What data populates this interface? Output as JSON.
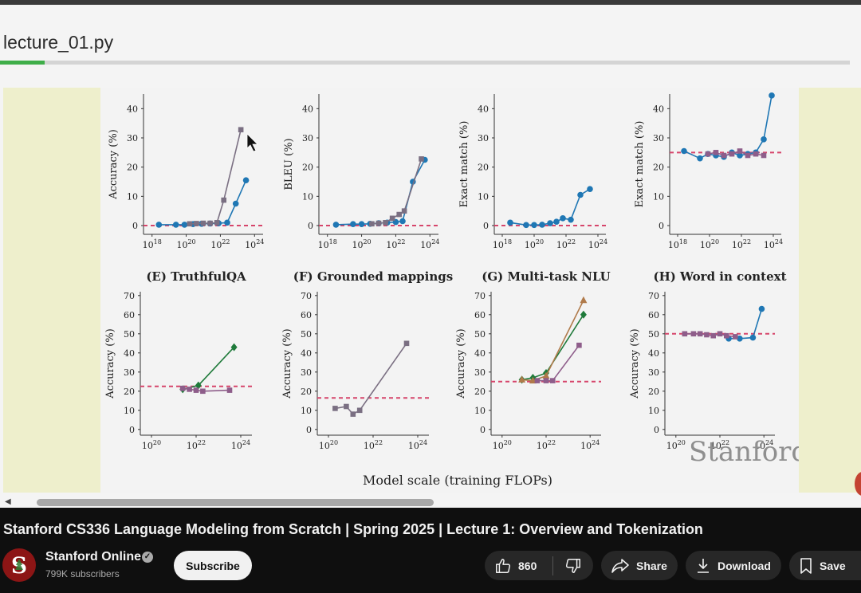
{
  "editor": {
    "tab_title": "lecture_01.py"
  },
  "figure": {
    "top_row": [
      {
        "ylabel": "Accuracy (%)",
        "yticks": [
          "0",
          "10",
          "20",
          "30",
          "40"
        ],
        "xticks": [
          "10",
          "10",
          "10",
          "10"
        ],
        "xexp": [
          "18",
          "20",
          "22",
          "24"
        ]
      },
      {
        "ylabel": "BLEU (%)",
        "yticks": [
          "0",
          "10",
          "20",
          "30",
          "40"
        ],
        "xticks": [
          "10",
          "10",
          "10",
          "10"
        ],
        "xexp": [
          "18",
          "20",
          "22",
          "24"
        ]
      },
      {
        "ylabel": "Exact match (%)",
        "yticks": [
          "0",
          "10",
          "20",
          "30",
          "40"
        ],
        "xticks": [
          "10",
          "10",
          "10",
          "10"
        ],
        "xexp": [
          "18",
          "20",
          "22",
          "24"
        ]
      },
      {
        "ylabel": "Exact match (%)",
        "yticks": [
          "0",
          "10",
          "20",
          "30",
          "40"
        ],
        "xticks": [
          "10",
          "10",
          "10",
          "10"
        ],
        "xexp": [
          "18",
          "20",
          "22",
          "24"
        ]
      }
    ],
    "bottom_row": [
      {
        "title": "(E) TruthfulQA",
        "ylabel": "Accuracy (%)",
        "yticks": [
          "0",
          "10",
          "20",
          "30",
          "40",
          "50",
          "60",
          "70"
        ],
        "xticks": [
          "10",
          "10",
          "10"
        ],
        "xexp": [
          "20",
          "22",
          "24"
        ]
      },
      {
        "title": "(F) Grounded mappings",
        "ylabel": "Accuracy (%)",
        "yticks": [
          "0",
          "10",
          "20",
          "30",
          "40",
          "50",
          "60",
          "70"
        ],
        "xticks": [
          "10",
          "10",
          "10"
        ],
        "xexp": [
          "20",
          "22",
          "24"
        ]
      },
      {
        "title": "(G) Multi-task NLU",
        "ylabel": "Accuracy (%)",
        "yticks": [
          "0",
          "10",
          "20",
          "30",
          "40",
          "50",
          "60",
          "70"
        ],
        "xticks": [
          "10",
          "10",
          "10"
        ],
        "xexp": [
          "20",
          "22",
          "24"
        ]
      },
      {
        "title": "(H) Word in context",
        "ylabel": "Accuracy (%)",
        "yticks": [
          "0",
          "10",
          "20",
          "30",
          "40",
          "50",
          "60",
          "70"
        ],
        "xticks": [
          "10",
          "10",
          "10"
        ],
        "xexp": [
          "20",
          "22",
          "24"
        ]
      }
    ],
    "xlabel": "Model scale (training FLOPs)",
    "watermark": "Stanford"
  },
  "chart_data": [
    {
      "type": "line",
      "panel": "A",
      "ylabel": "Accuracy (%)",
      "xlog_range": [
        17.5,
        24.5
      ],
      "ylim": [
        -3,
        45
      ],
      "baseline": 0,
      "series": [
        {
          "name": "blue",
          "color": "#1f77b4",
          "x": [
            18.4,
            19.4,
            19.9,
            20.4,
            20.9,
            21.4,
            21.9,
            22.4,
            22.9,
            23.5
          ],
          "y": [
            0.3,
            0.3,
            0.3,
            0.5,
            0.6,
            0.7,
            0.8,
            1.0,
            7.5,
            15.5
          ]
        },
        {
          "name": "grey",
          "color": "#7a6f82",
          "x": [
            20.2,
            20.6,
            21.0,
            21.4,
            21.8,
            22.2,
            23.2
          ],
          "y": [
            0.6,
            0.7,
            0.8,
            0.8,
            1.0,
            8.7,
            32.8
          ]
        }
      ]
    },
    {
      "type": "line",
      "panel": "B",
      "ylabel": "BLEU (%)",
      "xlog_range": [
        17.5,
        24.5
      ],
      "ylim": [
        -3,
        45
      ],
      "baseline": 0,
      "series": [
        {
          "name": "blue",
          "color": "#1f77b4",
          "x": [
            18.5,
            19.5,
            20.0,
            20.5,
            21.0,
            21.5,
            22.0,
            22.4,
            23.0,
            23.7
          ],
          "y": [
            0.3,
            0.5,
            0.5,
            0.6,
            0.8,
            1.0,
            1.2,
            1.5,
            15.0,
            22.5
          ]
        },
        {
          "name": "grey",
          "color": "#7a6f82",
          "x": [
            20.6,
            21.0,
            21.4,
            21.8,
            22.2,
            22.5,
            23.5
          ],
          "y": [
            0.6,
            0.8,
            1.0,
            2.5,
            3.8,
            5.0,
            22.8
          ]
        }
      ]
    },
    {
      "type": "line",
      "panel": "C",
      "ylabel": "Exact match (%)",
      "xlog_range": [
        17.5,
        24.5
      ],
      "ylim": [
        -3,
        45
      ],
      "baseline": 0,
      "series": [
        {
          "name": "blue",
          "color": "#1f77b4",
          "x": [
            18.5,
            19.5,
            20.0,
            20.5,
            21.0,
            21.4,
            21.8,
            22.3,
            22.9,
            23.5
          ],
          "y": [
            1.0,
            0.2,
            0.2,
            0.3,
            0.8,
            1.3,
            2.5,
            2.0,
            10.5,
            12.5
          ]
        }
      ]
    },
    {
      "type": "line",
      "panel": "D",
      "ylabel": "Exact match (%)",
      "xlog_range": [
        17.5,
        24.5
      ],
      "ylim": [
        -3,
        45
      ],
      "baseline": 25,
      "series": [
        {
          "name": "blue",
          "color": "#1f77b4",
          "x": [
            18.4,
            19.4,
            19.9,
            20.4,
            20.9,
            21.4,
            21.9,
            22.4,
            22.9,
            23.4,
            23.9
          ],
          "y": [
            25.5,
            23.0,
            24.5,
            24.0,
            23.5,
            25.0,
            24.0,
            24.5,
            25.0,
            29.5,
            44.5
          ]
        },
        {
          "name": "purple",
          "color": "#8e5d8a",
          "x": [
            19.9,
            20.4,
            20.9,
            21.4,
            21.9,
            22.4,
            22.9,
            23.4
          ],
          "y": [
            24.5,
            25.0,
            24.0,
            24.5,
            25.5,
            24.0,
            24.5,
            24.0
          ]
        }
      ]
    },
    {
      "type": "line",
      "panel": "E",
      "title": "(E) TruthfulQA",
      "ylabel": "Accuracy (%)",
      "xlog_range": [
        19.5,
        24.5
      ],
      "ylim": [
        -3,
        72
      ],
      "baseline": 22.5,
      "series": [
        {
          "name": "green",
          "color": "#1f7a3a",
          "x": [
            21.4,
            22.1,
            23.7
          ],
          "y": [
            21.0,
            23.0,
            43.0
          ]
        },
        {
          "name": "purple",
          "color": "#8e5d8a",
          "x": [
            21.4,
            21.7,
            22.0,
            22.3,
            23.5
          ],
          "y": [
            21.5,
            21.0,
            20.5,
            20.0,
            20.5
          ]
        }
      ]
    },
    {
      "type": "line",
      "panel": "F",
      "title": "(F) Grounded mappings",
      "ylabel": "Accuracy (%)",
      "xlog_range": [
        19.5,
        24.5
      ],
      "ylim": [
        -3,
        72
      ],
      "baseline": 16.5,
      "series": [
        {
          "name": "grey",
          "color": "#7a6f82",
          "x": [
            20.3,
            20.8,
            21.1,
            21.4,
            23.5
          ],
          "y": [
            11.0,
            12.0,
            8.0,
            10.0,
            45.0
          ]
        }
      ]
    },
    {
      "type": "line",
      "panel": "G",
      "title": "(G) Multi-task NLU",
      "ylabel": "Accuracy (%)",
      "xlog_range": [
        19.5,
        24.5
      ],
      "ylim": [
        -3,
        72
      ],
      "baseline": 25,
      "series": [
        {
          "name": "green",
          "color": "#1f7a3a",
          "x": [
            20.9,
            21.4,
            22.0,
            23.7
          ],
          "y": [
            26.0,
            27.0,
            29.5,
            60.0
          ]
        },
        {
          "name": "brown",
          "color": "#b07a4a",
          "x": [
            20.9,
            21.4,
            22.0,
            23.7
          ],
          "y": [
            26.0,
            25.5,
            28.0,
            67.5
          ]
        },
        {
          "name": "purple",
          "color": "#8e5d8a",
          "x": [
            21.6,
            22.0,
            22.3,
            23.5
          ],
          "y": [
            25.5,
            25.5,
            25.5,
            44.0
          ]
        }
      ]
    },
    {
      "type": "line",
      "panel": "H",
      "title": "(H) Word in context",
      "ylabel": "Accuracy (%)",
      "xlog_range": [
        19.5,
        24.5
      ],
      "ylim": [
        -3,
        72
      ],
      "baseline": 50,
      "series": [
        {
          "name": "blue",
          "color": "#1f77b4",
          "x": [
            22.4,
            22.9,
            23.5,
            23.9
          ],
          "y": [
            47.5,
            47.5,
            48.0,
            63.0
          ]
        },
        {
          "name": "purple",
          "color": "#8e5d8a",
          "x": [
            20.4,
            20.8,
            21.1,
            21.4,
            21.7,
            22.0,
            22.3,
            22.7
          ],
          "y": [
            50.0,
            50.0,
            50.0,
            49.5,
            49.0,
            50.0,
            49.0,
            48.5
          ]
        }
      ]
    }
  ],
  "video": {
    "title": "Stanford CS336 Language Modeling from Scratch | Spring 2025 | Lecture 1: Overview and Tokenization",
    "channel": "Stanford Online",
    "subscribers": "799K subscribers",
    "subscribe_label": "Subscribe",
    "likes": "860",
    "share_label": "Share",
    "download_label": "Download",
    "save_label": "Save",
    "verified_glyph": "✓"
  },
  "icons": {
    "channel_avatar": "stanford-tree-logo-icon",
    "verified": "verified-check-icon",
    "like": "thumbs-up-icon",
    "dislike": "thumbs-down-icon",
    "share": "share-arrow-icon",
    "download": "download-icon",
    "save": "bookmark-icon",
    "scroll_left": "scroll-left-arrow-icon"
  },
  "colors": {
    "accent_green": "#3fae49",
    "background_dark": "#0f0f0f",
    "dashed_baseline": "#d6456b",
    "stanford_red": "#8c1515"
  }
}
